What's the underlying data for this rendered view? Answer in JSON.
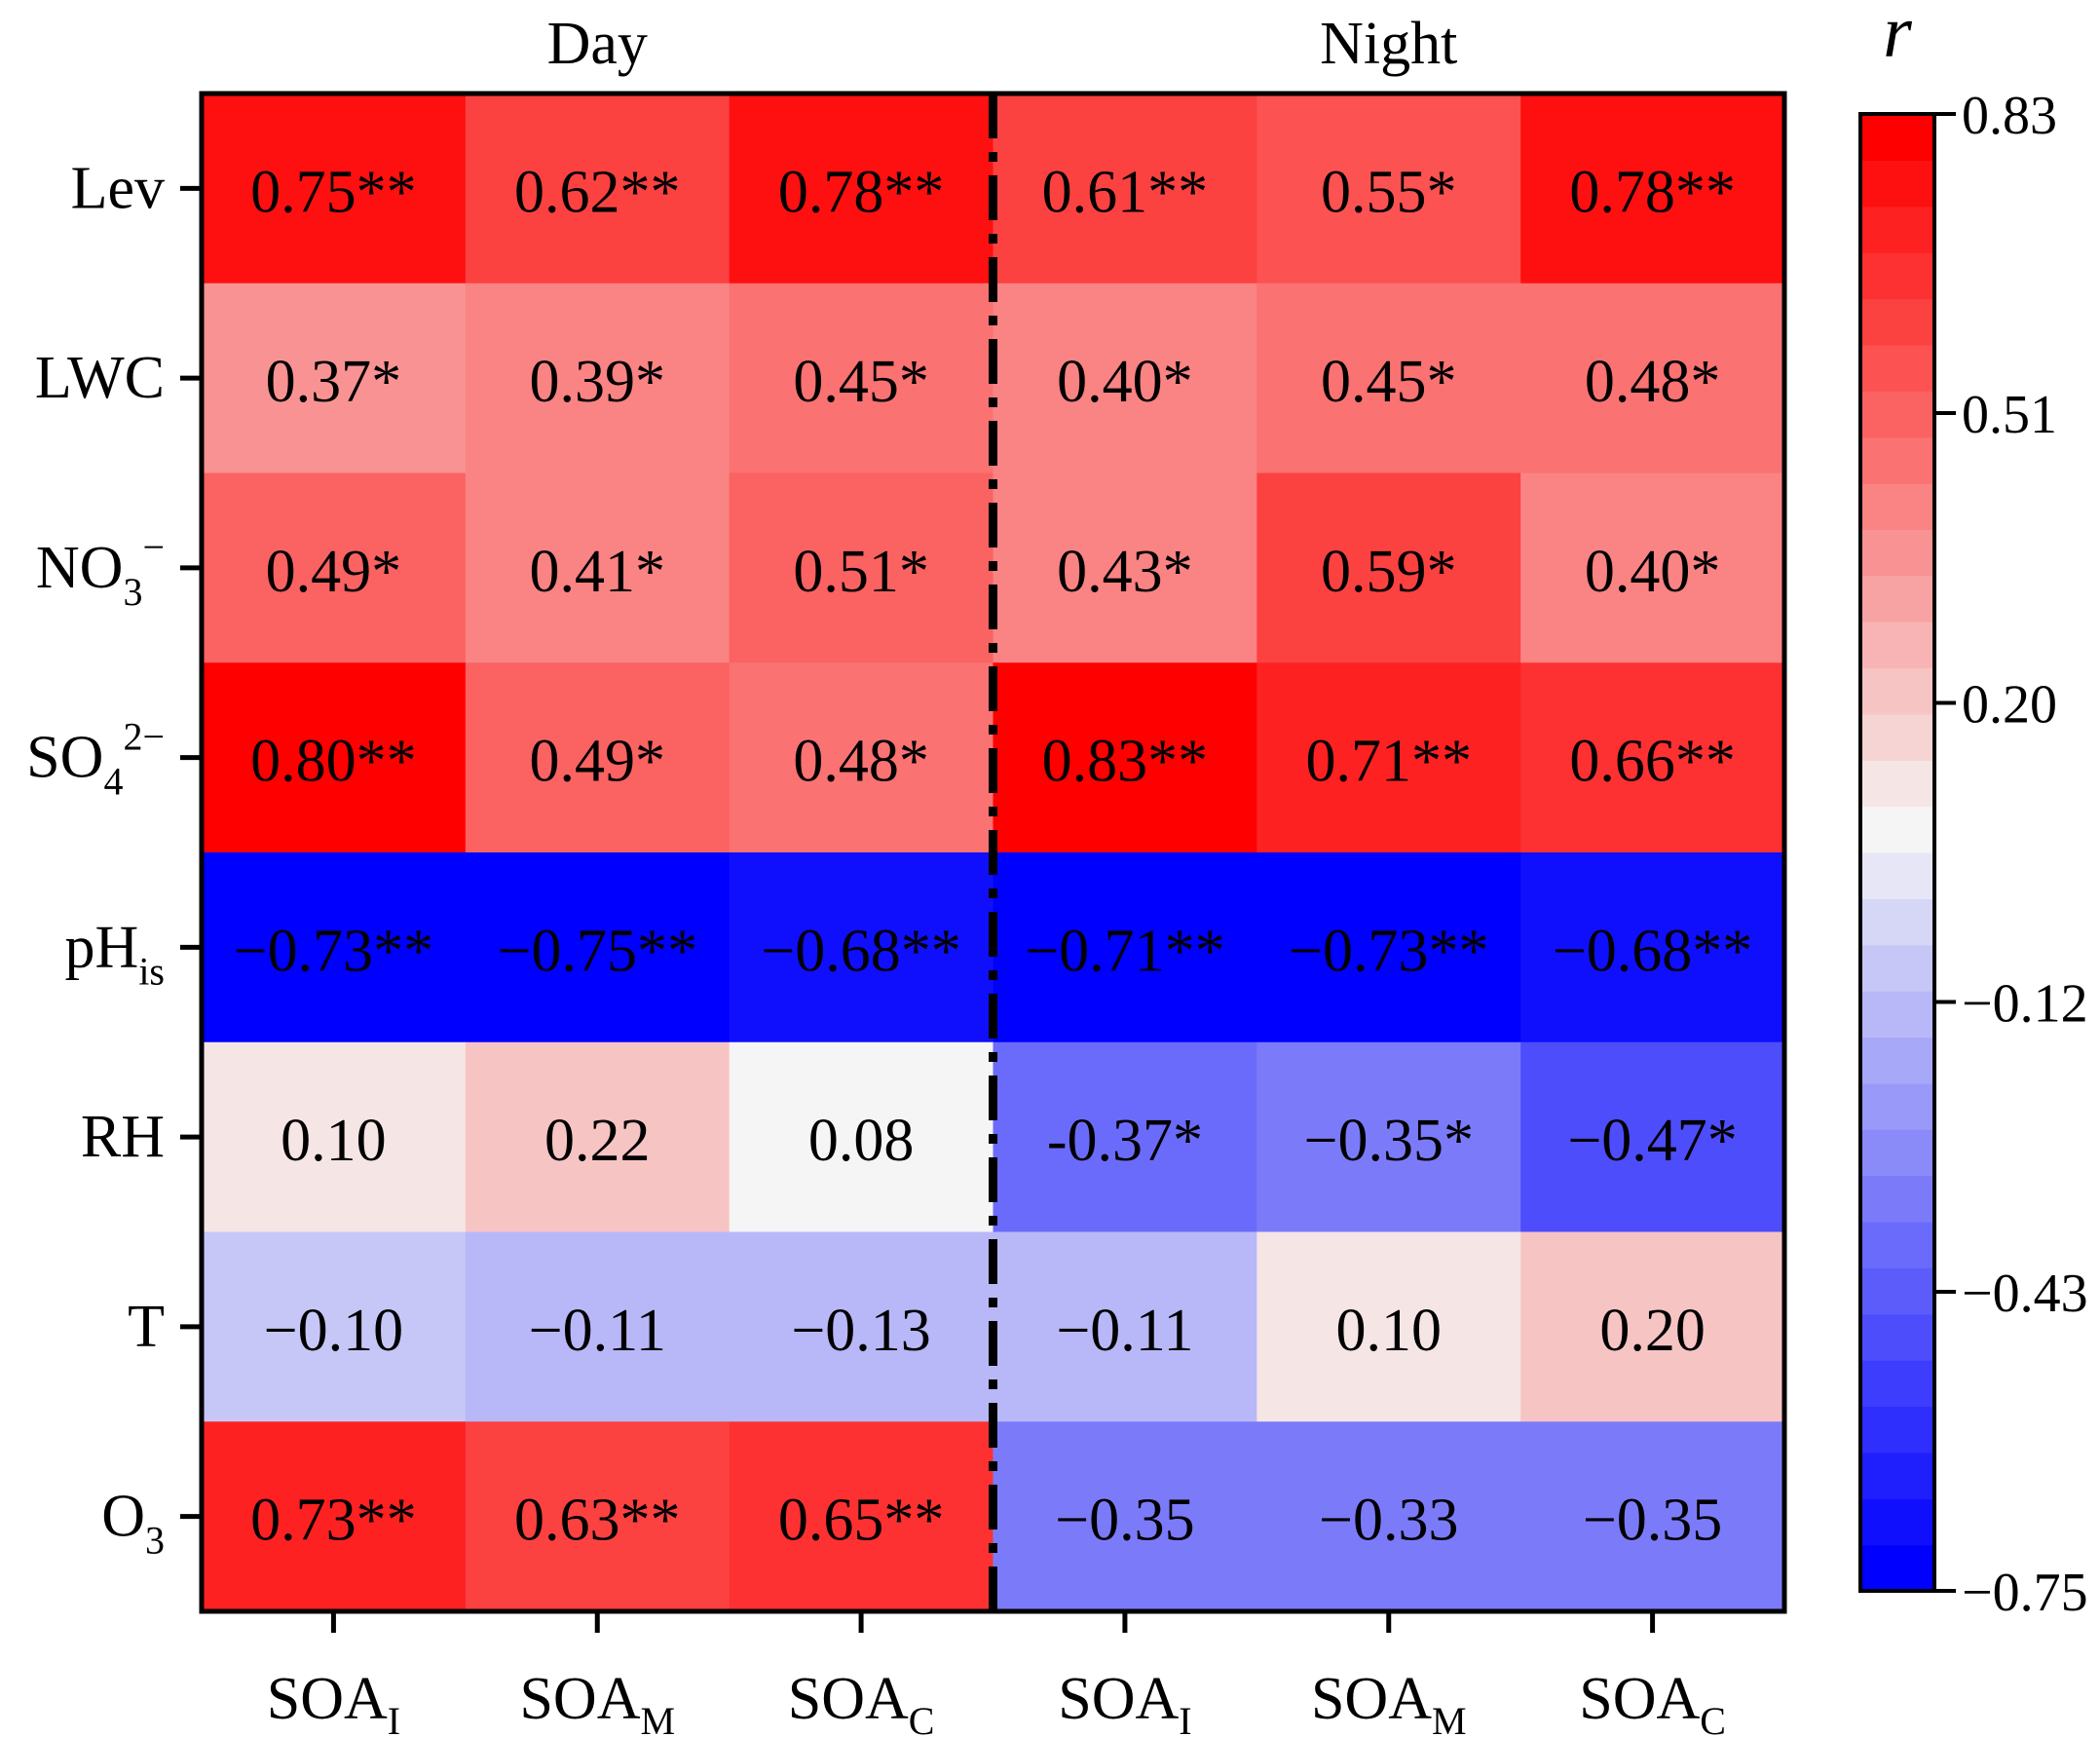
{
  "chart_data": {
    "type": "heatmap",
    "title": "",
    "group_labels": [
      "Day",
      "Night"
    ],
    "columns": [
      {
        "group": "Day",
        "base": "SOA",
        "sub": "I"
      },
      {
        "group": "Day",
        "base": "SOA",
        "sub": "M"
      },
      {
        "group": "Day",
        "base": "SOA",
        "sub": "C"
      },
      {
        "group": "Night",
        "base": "SOA",
        "sub": "I"
      },
      {
        "group": "Night",
        "base": "SOA",
        "sub": "M"
      },
      {
        "group": "Night",
        "base": "SOA",
        "sub": "C"
      }
    ],
    "rows": [
      {
        "base": "Lev",
        "sub": "",
        "sup": ""
      },
      {
        "base": "LWC",
        "sub": "",
        "sup": ""
      },
      {
        "base": "NO",
        "sub": "3",
        "sup": "−"
      },
      {
        "base": "SO",
        "sub": "4",
        "sup": "2−"
      },
      {
        "base": "pH",
        "sub": "is",
        "sup": ""
      },
      {
        "base": "RH",
        "sub": "",
        "sup": ""
      },
      {
        "base": "T",
        "sub": "",
        "sup": ""
      },
      {
        "base": "O",
        "sub": "3",
        "sup": ""
      }
    ],
    "values": [
      [
        0.75,
        0.62,
        0.78,
        0.61,
        0.55,
        0.78
      ],
      [
        0.37,
        0.39,
        0.45,
        0.4,
        0.45,
        0.48
      ],
      [
        0.49,
        0.41,
        0.51,
        0.43,
        0.59,
        0.4
      ],
      [
        0.8,
        0.49,
        0.48,
        0.83,
        0.71,
        0.66
      ],
      [
        -0.73,
        -0.75,
        -0.68,
        -0.71,
        -0.73,
        -0.68
      ],
      [
        0.1,
        0.22,
        0.08,
        -0.37,
        -0.35,
        -0.47
      ],
      [
        -0.1,
        -0.11,
        -0.13,
        -0.11,
        0.1,
        0.2
      ],
      [
        0.73,
        0.63,
        0.65,
        -0.35,
        -0.33,
        -0.35
      ]
    ],
    "labels": [
      [
        "0.75**",
        "0.62**",
        "0.78**",
        "0.61**",
        "0.55*",
        "0.78**"
      ],
      [
        "0.37*",
        "0.39*",
        "0.45*",
        "0.40*",
        "0.45*",
        "0.48*"
      ],
      [
        "0.49*",
        "0.41*",
        "0.51*",
        "0.43*",
        "0.59*",
        "0.40*"
      ],
      [
        "0.80**",
        "0.49*",
        "0.48*",
        "0.83**",
        "0.71**",
        "0.66**"
      ],
      [
        "−0.73**",
        "−0.75**",
        "−0.68**",
        "−0.71**",
        "−0.73**",
        "−0.68**"
      ],
      [
        "0.10",
        "0.22",
        "0.08",
        "-0.37*",
        "−0.35*",
        "−0.47*"
      ],
      [
        "−0.10",
        "−0.11",
        "−0.13",
        "−0.11",
        "0.10",
        "0.20"
      ],
      [
        "0.73**",
        "0.63**",
        "0.65**",
        "−0.35",
        "−0.33",
        "−0.35"
      ]
    ],
    "colorbar": {
      "title": "r",
      "range": [
        -0.75,
        0.83
      ],
      "ticks": [
        0.83,
        0.51,
        0.2,
        -0.12,
        -0.43,
        -0.75
      ],
      "tick_labels": [
        "0.83",
        "0.51",
        "0.20",
        "−0.12",
        "−0.43",
        "−0.75"
      ],
      "low_color": "#0000ff",
      "mid_color": "#f5f5f5",
      "high_color": "#ff0000"
    },
    "divider_style": "dash-dot"
  }
}
